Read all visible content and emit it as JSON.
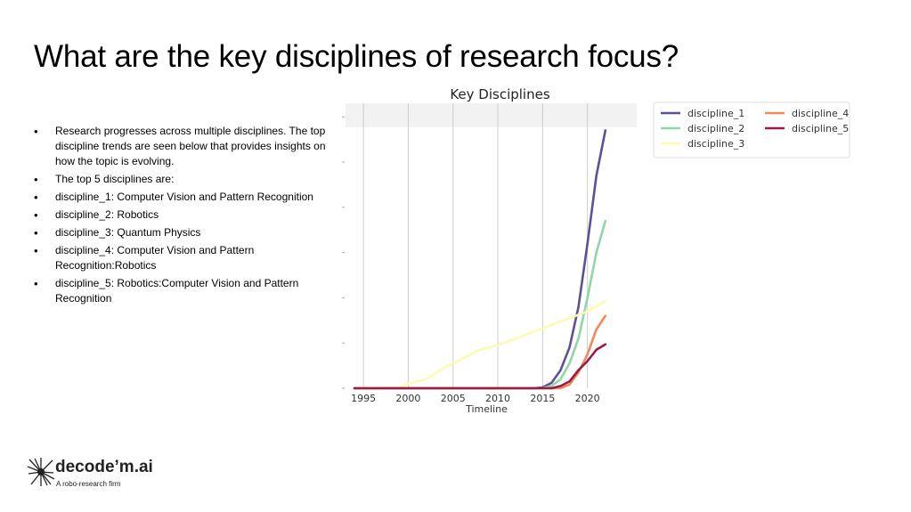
{
  "title": "What are the key disciplines of research focus?",
  "bullets": [
    "Research progresses across multiple disciplines. The top discipline trends are seen below that provides insights on how the topic is evolving.",
    "The top 5 disciplines are:",
    "discipline_1: Computer Vision and Pattern Recognition",
    "discipline_2: Robotics",
    "discipline_3: Quantum Physics",
    "discipline_4: Computer Vision and Pattern Recognition:Robotics",
    "discipline_5: Robotics:Computer Vision and Pattern Recognition"
  ],
  "logo": {
    "brand": "decode’m.ai",
    "tagline": "A robo-research firm"
  },
  "chart_data": {
    "type": "line",
    "title": "Key Disciplines",
    "xlabel": "Timeline",
    "ylabel": "",
    "xlim": [
      1993,
      2025.5
    ],
    "ylim": [
      0,
      6.3
    ],
    "xticks": [
      1995,
      2000,
      2005,
      2010,
      2015,
      2020
    ],
    "legend_position": "right, outside plot",
    "grid": true,
    "series": [
      {
        "name": "discipline_1",
        "color": "#5e4f98",
        "points": [
          [
            1994,
            0
          ],
          [
            2014,
            0
          ],
          [
            2015,
            0.02
          ],
          [
            2016,
            0.12
          ],
          [
            2017,
            0.4
          ],
          [
            2018,
            0.9
          ],
          [
            2019,
            1.8
          ],
          [
            2020,
            3.2
          ],
          [
            2021,
            4.7
          ],
          [
            2022,
            5.7
          ]
        ]
      },
      {
        "name": "discipline_2",
        "color": "#8fd6a8",
        "points": [
          [
            1994,
            0
          ],
          [
            2015,
            0
          ],
          [
            2016,
            0.05
          ],
          [
            2017,
            0.2
          ],
          [
            2018,
            0.55
          ],
          [
            2019,
            1.1
          ],
          [
            2020,
            2.0
          ],
          [
            2021,
            3.0
          ],
          [
            2022,
            3.7
          ]
        ]
      },
      {
        "name": "discipline_3",
        "color": "#fbfbb4",
        "points": [
          [
            1994,
            0
          ],
          [
            1999,
            0.02
          ],
          [
            2000,
            0.1
          ],
          [
            2002,
            0.2
          ],
          [
            2004,
            0.45
          ],
          [
            2006,
            0.65
          ],
          [
            2008,
            0.85
          ],
          [
            2010,
            0.95
          ],
          [
            2012,
            1.1
          ],
          [
            2014,
            1.25
          ],
          [
            2016,
            1.4
          ],
          [
            2018,
            1.55
          ],
          [
            2020,
            1.7
          ],
          [
            2022,
            1.93
          ]
        ]
      },
      {
        "name": "discipline_4",
        "color": "#ee8a5c",
        "points": [
          [
            1994,
            0
          ],
          [
            2017,
            0
          ],
          [
            2018,
            0.08
          ],
          [
            2019,
            0.35
          ],
          [
            2020,
            0.75
          ],
          [
            2021,
            1.3
          ],
          [
            2022,
            1.6
          ]
        ]
      },
      {
        "name": "discipline_5",
        "color": "#9c1a45",
        "points": [
          [
            1994,
            0
          ],
          [
            2016,
            0
          ],
          [
            2017,
            0.05
          ],
          [
            2018,
            0.15
          ],
          [
            2019,
            0.4
          ],
          [
            2020,
            0.6
          ],
          [
            2021,
            0.85
          ],
          [
            2022,
            0.97
          ]
        ]
      }
    ]
  }
}
